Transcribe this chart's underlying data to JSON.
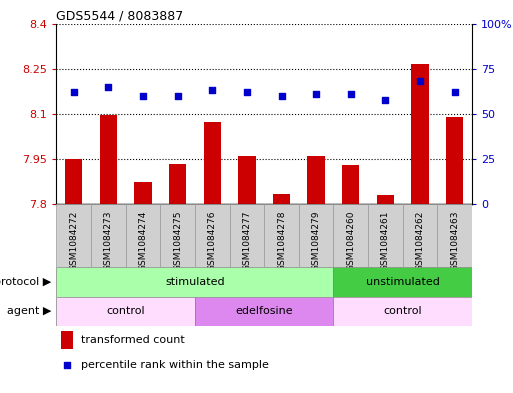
{
  "title": "GDS5544 / 8083887",
  "samples": [
    "GSM1084272",
    "GSM1084273",
    "GSM1084274",
    "GSM1084275",
    "GSM1084276",
    "GSM1084277",
    "GSM1084278",
    "GSM1084279",
    "GSM1084260",
    "GSM1084261",
    "GSM1084262",
    "GSM1084263"
  ],
  "bar_values": [
    7.95,
    8.095,
    7.875,
    7.935,
    8.075,
    7.96,
    7.835,
    7.96,
    7.93,
    7.83,
    8.265,
    8.09
  ],
  "dot_values": [
    62,
    65,
    60,
    60,
    63,
    62,
    60,
    61,
    61,
    58,
    68,
    62
  ],
  "bar_color": "#cc0000",
  "dot_color": "#0000cc",
  "ylim_left": [
    7.8,
    8.4
  ],
  "ylim_right": [
    0,
    100
  ],
  "yticks_left": [
    7.8,
    7.95,
    8.1,
    8.25,
    8.4
  ],
  "ytick_labels_left": [
    "7.8",
    "7.95",
    "8.1",
    "8.25",
    "8.4"
  ],
  "yticks_right": [
    0,
    25,
    50,
    75,
    100
  ],
  "ytick_labels_right": [
    "0",
    "25",
    "50",
    "75",
    "100%"
  ],
  "protocol_groups": [
    {
      "label": "stimulated",
      "start": 0,
      "end": 8,
      "color": "#aaffaa"
    },
    {
      "label": "unstimulated",
      "start": 8,
      "end": 12,
      "color": "#44cc44"
    }
  ],
  "agent_groups": [
    {
      "label": "control",
      "start": 0,
      "end": 4,
      "color": "#ffddff"
    },
    {
      "label": "edelfosine",
      "start": 4,
      "end": 8,
      "color": "#dd88ee"
    },
    {
      "label": "control",
      "start": 8,
      "end": 12,
      "color": "#ffddff"
    }
  ],
  "legend_bar_label": "transformed count",
  "legend_dot_label": "percentile rank within the sample",
  "protocol_label": "protocol",
  "agent_label": "agent",
  "bar_width": 0.5,
  "grid_color": "black",
  "label_color_left": "#cc0000",
  "label_color_right": "#0000cc",
  "sample_bg_color": "#d0d0d0",
  "sample_border_color": "#999999"
}
